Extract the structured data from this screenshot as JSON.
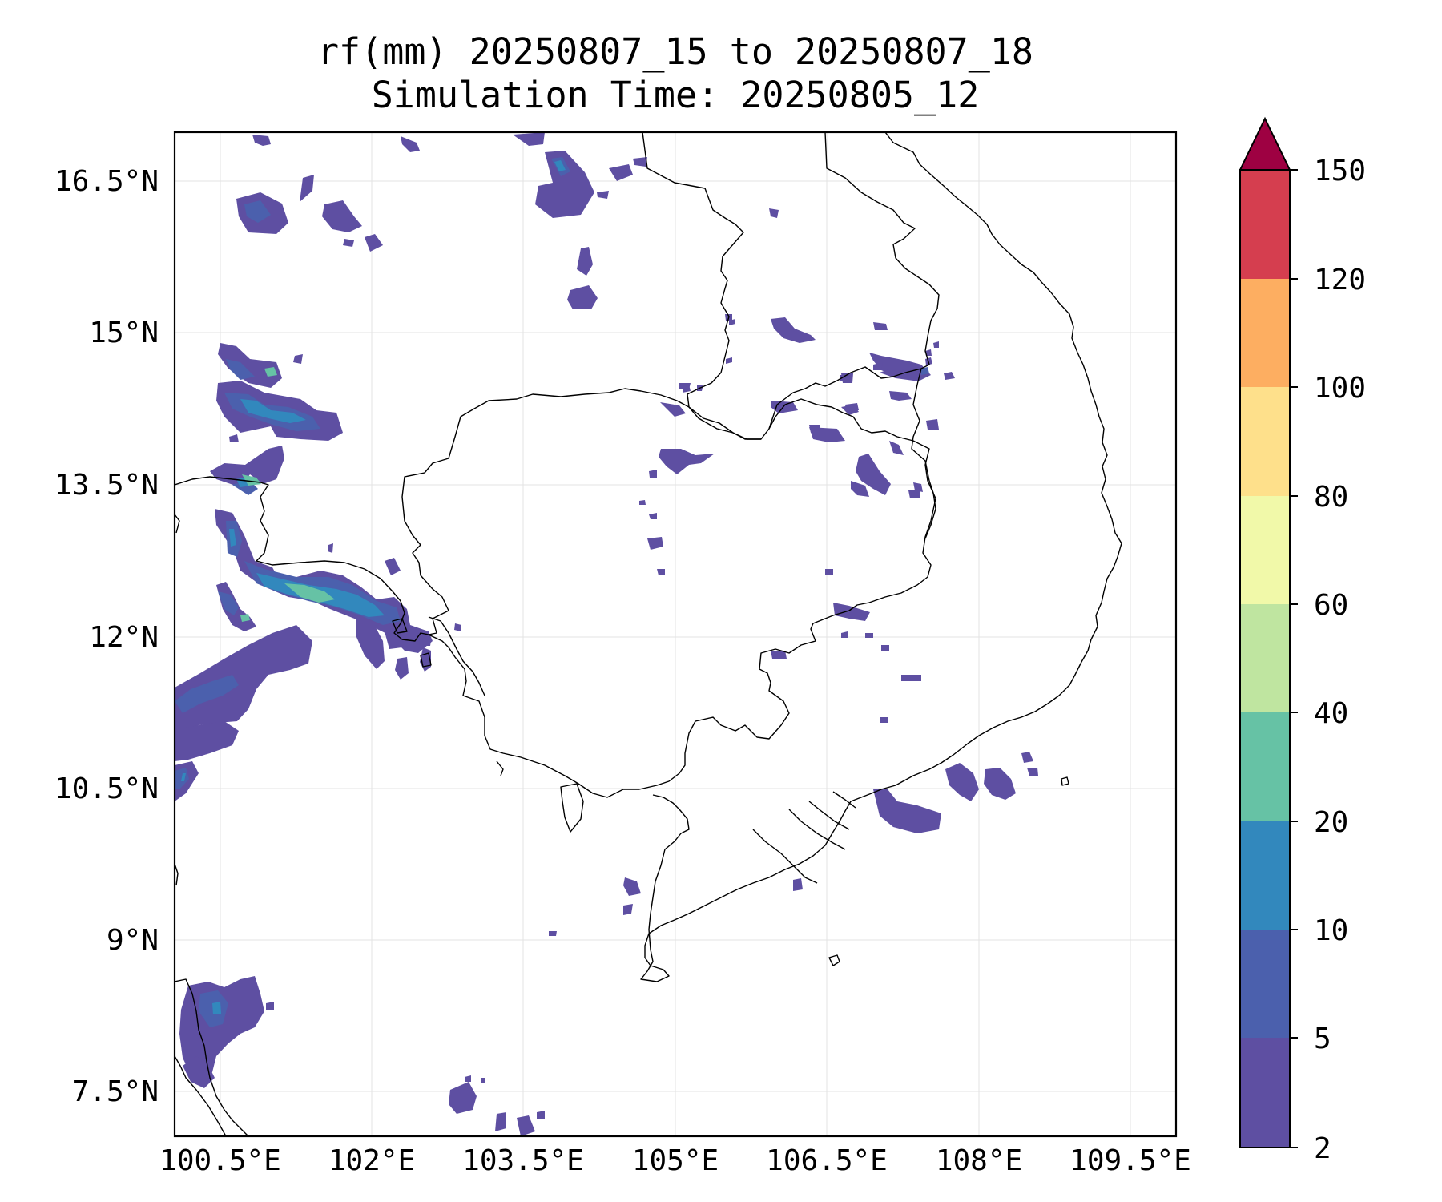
{
  "title": {
    "line1": "rf(mm) 20250807_15 to 20250807_18",
    "line2": "Simulation Time: 20250805_12"
  },
  "map": {
    "lon_ticks": [
      "100.5°E",
      "102°E",
      "103.5°E",
      "105°E",
      "106.5°E",
      "108°E",
      "109.5°E"
    ],
    "lat_ticks": [
      "16.5°N",
      "15°N",
      "13.5°N",
      "12°N",
      "10.5°N",
      "9°N",
      "7.5°N"
    ],
    "gridlines": true,
    "coastline_color": "#000000"
  },
  "colorbar": {
    "levels": [
      "2",
      "5",
      "10",
      "20",
      "40",
      "60",
      "80",
      "100",
      "120",
      "150"
    ],
    "colors": [
      "#5e4fa2",
      "#4b60ad",
      "#3288bd",
      "#66c2a5",
      "#bfe5a0",
      "#f1f9a9",
      "#fee08b",
      "#fdae61",
      "#d53e4f",
      "#9e0142"
    ],
    "extend": "max",
    "extend_color": "#9e0142"
  },
  "precip_colors": {
    "lvl1": "#5e4fa2",
    "lvl2": "#4b60ad",
    "lvl3": "#3288bd",
    "lvl4": "#66c2a5"
  }
}
